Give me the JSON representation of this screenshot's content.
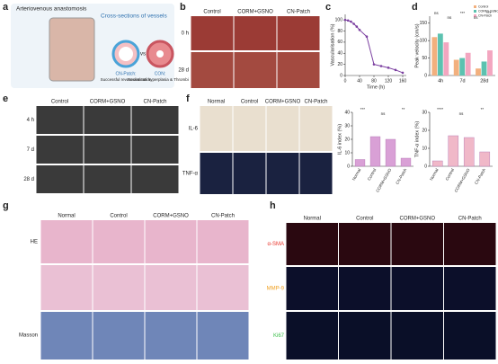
{
  "panel_letters": [
    "a",
    "b",
    "c",
    "d",
    "e",
    "f",
    "g",
    "h"
  ],
  "panel_a": {
    "left": "Arteriovenous anastomosis",
    "right": "Cross-sections of vessels",
    "good_title": "CN-Patch:",
    "good_text": "Successful revascularization",
    "vs": "vs",
    "bad_title": "CON:",
    "bad_text": "Neointimal hyperplasia & Thrombi"
  },
  "panel_b": {
    "cols": [
      "Control",
      "CORM+GSNO",
      "CN-Patch"
    ],
    "rows": [
      "0 h",
      "28 d"
    ]
  },
  "panel_e": {
    "cols": [
      "Control",
      "CORM+GSNO",
      "CN-Patch"
    ],
    "rows": [
      "4 h",
      "7 d",
      "28 d"
    ]
  },
  "panel_f": {
    "cols": [
      "Normal",
      "Control",
      "CORM+GSNO",
      "CN-Patch"
    ],
    "rows": [
      "IL-6",
      "TNF-α"
    ]
  },
  "panel_g": {
    "cols": [
      "Normal",
      "Control",
      "CORM+GSNO",
      "CN-Patch"
    ],
    "rows": [
      "HE",
      "Masson"
    ]
  },
  "panel_h": {
    "cols": [
      "Normal",
      "Control",
      "CORM+GSNO",
      "CN-Patch"
    ],
    "rows": [
      "α-SMA",
      "MMP-9",
      "Ki67"
    ]
  },
  "chart_data": [
    {
      "type": "line",
      "ylabel": "Vascularisation (%)",
      "xlabel": "Time (h)",
      "color": "#7b3fa0",
      "x": [
        0,
        8,
        16,
        24,
        32,
        40,
        60,
        80,
        100,
        120,
        140,
        160
      ],
      "values": [
        100,
        99,
        97,
        93,
        88,
        82,
        70,
        20,
        17,
        14,
        10,
        5
      ],
      "xlim": [
        0,
        170
      ],
      "ylim": [
        0,
        110
      ],
      "xticks": [
        0,
        40,
        80,
        120,
        160
      ],
      "yticks": [
        0,
        20,
        40,
        60,
        80,
        100
      ]
    },
    {
      "type": "groupbar",
      "ylabel": "Peak velocity (cm/s)",
      "categories": [
        "4h",
        "7d",
        "28d"
      ],
      "series": [
        {
          "name": "Control",
          "color": "#f2b07e",
          "values": [
            110,
            45,
            20
          ]
        },
        {
          "name": "CORM+GSNO",
          "color": "#5cc2b0",
          "values": [
            120,
            50,
            40
          ]
        },
        {
          "name": "CN-Patch",
          "color": "#f3a6c0",
          "values": [
            95,
            65,
            72
          ]
        }
      ],
      "ylim": [
        0,
        170
      ],
      "yticks": [
        0,
        50,
        100,
        150
      ],
      "annotations": [
        "ns",
        "ns",
        "***",
        "ns",
        "***"
      ]
    },
    {
      "type": "bar",
      "ylabel": "IL-6 index (%)",
      "categories": [
        "Normal",
        "Control",
        "CORM+GSNO",
        "CN-Patch"
      ],
      "values": [
        5,
        22,
        20,
        6
      ],
      "color": "#d9a0d6",
      "ylim": [
        0,
        40
      ],
      "yticks": [
        0,
        10,
        20,
        30,
        40
      ],
      "annotations": [
        "***",
        "ns",
        "**"
      ]
    },
    {
      "type": "bar",
      "ylabel": "TNF-α index (%)",
      "categories": [
        "Normal",
        "Control",
        "CORM+GSNO",
        "CN-Patch"
      ],
      "values": [
        3,
        17,
        16,
        8
      ],
      "color": "#f0b8c8",
      "ylim": [
        0,
        30
      ],
      "yticks": [
        0,
        10,
        20,
        30
      ],
      "annotations": [
        "****",
        "ns",
        "**"
      ]
    }
  ]
}
